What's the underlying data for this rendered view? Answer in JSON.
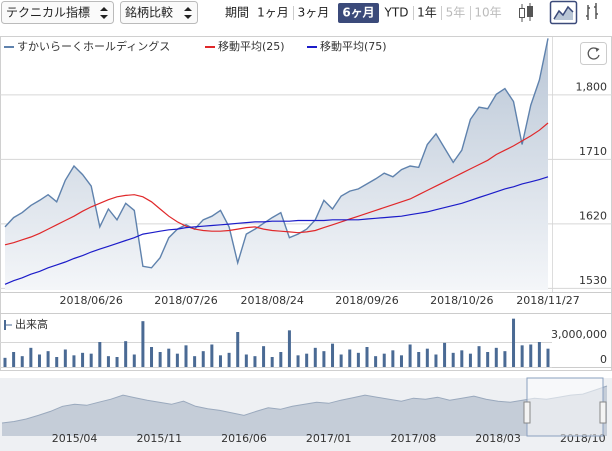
{
  "toolbar": {
    "dropdowns": [
      "テクニカル指標",
      "銘柄比較"
    ],
    "period_label": "期間",
    "ranges": [
      {
        "label": "1ヶ月",
        "state": "normal"
      },
      {
        "label": "3ヶ月",
        "state": "normal"
      },
      {
        "label": "6ヶ月",
        "state": "active"
      },
      {
        "label": "YTD",
        "state": "normal"
      },
      {
        "label": "1年",
        "state": "normal"
      },
      {
        "label": "5年",
        "state": "disabled"
      },
      {
        "label": "10年",
        "state": "disabled"
      }
    ]
  },
  "chart_data": [
    {
      "type": "line",
      "categories": [
        null,
        null,
        null,
        null,
        null,
        null,
        null,
        null,
        null,
        null,
        "2018/06/26",
        null,
        null,
        null,
        null,
        null,
        null,
        null,
        null,
        null,
        null,
        "2018/07/26",
        null,
        null,
        null,
        null,
        null,
        null,
        null,
        null,
        null,
        "2018/08/24",
        null,
        null,
        null,
        null,
        null,
        null,
        null,
        null,
        null,
        null,
        "2018/09/26",
        null,
        null,
        null,
        null,
        null,
        null,
        null,
        null,
        null,
        null,
        "2018/10/26",
        null,
        null,
        null,
        null,
        null,
        null,
        null,
        null,
        null,
        "2018/11/27"
      ],
      "series": [
        {
          "name": "すかいらーくホールディングス",
          "color": "#5f82ad",
          "area": true,
          "values": [
            1615,
            1628,
            1635,
            1645,
            1652,
            1660,
            1650,
            1680,
            1700,
            1688,
            1672,
            1615,
            1640,
            1625,
            1648,
            1638,
            1560,
            1558,
            1572,
            1600,
            1612,
            1618,
            1612,
            1625,
            1630,
            1638,
            1615,
            1565,
            1605,
            1612,
            1620,
            1628,
            1635,
            1600,
            1605,
            1612,
            1625,
            1652,
            1640,
            1658,
            1665,
            1668,
            1675,
            1682,
            1690,
            1685,
            1695,
            1700,
            1698,
            1730,
            1745,
            1725,
            1705,
            1722,
            1765,
            1782,
            1780,
            1800,
            1808,
            1790,
            1730,
            1785,
            1820,
            1878
          ]
        },
        {
          "name": "移動平均(25)",
          "color": "#e0282a",
          "values": [
            1590,
            1593,
            1597,
            1601,
            1606,
            1612,
            1618,
            1624,
            1630,
            1637,
            1643,
            1648,
            1653,
            1657,
            1659,
            1660,
            1657,
            1650,
            1640,
            1630,
            1622,
            1616,
            1612,
            1610,
            1609,
            1609,
            1610,
            1612,
            1614,
            1615,
            1612,
            1610,
            1609,
            1608,
            1607,
            1608,
            1610,
            1614,
            1618,
            1622,
            1626,
            1630,
            1634,
            1638,
            1642,
            1646,
            1650,
            1654,
            1660,
            1666,
            1672,
            1678,
            1684,
            1690,
            1696,
            1702,
            1708,
            1716,
            1722,
            1728,
            1735,
            1742,
            1750,
            1760
          ]
        },
        {
          "name": "移動平均(75)",
          "color": "#1c1cc9",
          "values": [
            1535,
            1540,
            1544,
            1549,
            1553,
            1558,
            1562,
            1566,
            1571,
            1575,
            1580,
            1584,
            1588,
            1592,
            1596,
            1600,
            1605,
            1607,
            1609,
            1611,
            1612,
            1614,
            1615,
            1616,
            1617,
            1618,
            1619,
            1620,
            1621,
            1622,
            1622,
            1623,
            1623,
            1623,
            1624,
            1624,
            1624,
            1624,
            1625,
            1625,
            1625,
            1625,
            1626,
            1627,
            1628,
            1629,
            1630,
            1632,
            1634,
            1636,
            1639,
            1642,
            1645,
            1648,
            1652,
            1656,
            1660,
            1664,
            1668,
            1671,
            1675,
            1678,
            1681,
            1685
          ]
        }
      ],
      "ylim": [
        1527,
        1880
      ],
      "yticks": [
        1530,
        1620,
        1710,
        {
          "value": 1800,
          "label": "1,800"
        }
      ],
      "grid": true
    },
    {
      "type": "bar",
      "title": "出来高",
      "color": "#4a6a94",
      "values": [
        1100000,
        1800000,
        1300000,
        2300000,
        1500000,
        1900000,
        1200000,
        2100000,
        1400000,
        1700000,
        1600000,
        3000000,
        1300000,
        1200000,
        3100000,
        1500000,
        5500000,
        2400000,
        1800000,
        2200000,
        1600000,
        2600000,
        1300000,
        1900000,
        2700000,
        1400000,
        1700000,
        4200000,
        1500000,
        1300000,
        2500000,
        1200000,
        1800000,
        4400000,
        1400000,
        1600000,
        2300000,
        1900000,
        2800000,
        1500000,
        2100000,
        1700000,
        2400000,
        1300000,
        1600000,
        2000000,
        1400000,
        2700000,
        1800000,
        2200000,
        1500000,
        2900000,
        1700000,
        2000000,
        1600000,
        2500000,
        1800000,
        2300000,
        1900000,
        5800000,
        2600000,
        2700000,
        3000000,
        2200000
      ],
      "ylim": [
        0,
        6000000
      ],
      "yticks": [
        0,
        {
          "value": 3000000,
          "label": "3,000,000"
        }
      ],
      "grid": true
    },
    {
      "type": "area",
      "color": "#9aa9bd",
      "categories": [
        null,
        null,
        null,
        null,
        null,
        null,
        "2015/04",
        null,
        null,
        null,
        null,
        null,
        null,
        "2015/11",
        null,
        null,
        null,
        null,
        null,
        null,
        "2016/06",
        null,
        null,
        null,
        null,
        null,
        null,
        "2017/01",
        null,
        null,
        null,
        null,
        null,
        null,
        "2017/08",
        null,
        null,
        null,
        null,
        null,
        null,
        "2018/03",
        null,
        null,
        null,
        null,
        null,
        null,
        "2018/10",
        null,
        null
      ],
      "values": [
        1150,
        1180,
        1230,
        1300,
        1380,
        1480,
        1520,
        1500,
        1560,
        1620,
        1700,
        1650,
        1600,
        1560,
        1520,
        1580,
        1480,
        1430,
        1400,
        1350,
        1300,
        1380,
        1450,
        1420,
        1480,
        1520,
        1560,
        1540,
        1600,
        1650,
        1700,
        1660,
        1620,
        1580,
        1640,
        1620,
        1660,
        1600,
        1640,
        1680,
        1620,
        1580,
        1560,
        1600,
        1640,
        1620,
        1660,
        1700,
        1720,
        1800,
        1880
      ]
    }
  ]
}
